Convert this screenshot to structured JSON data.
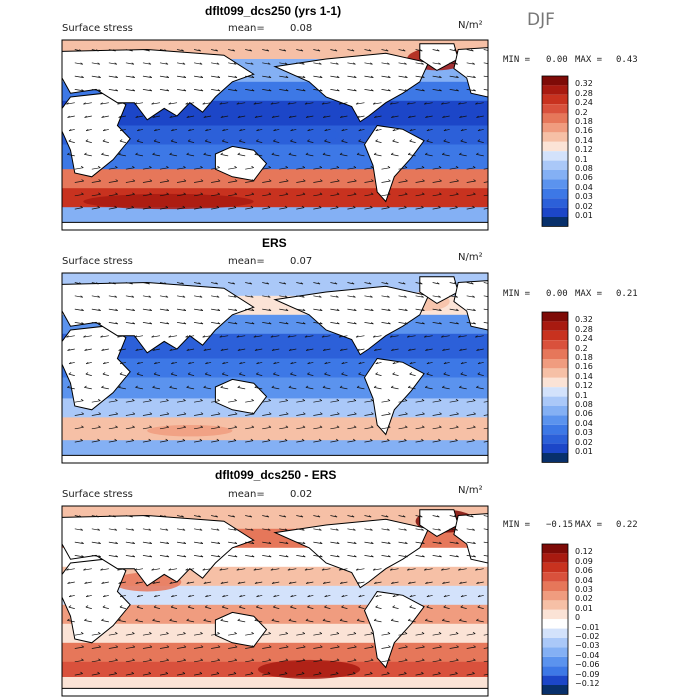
{
  "season": "DJF",
  "colors": {
    "ocean_pos": [
      "#08306b",
      "#1c46c8",
      "#2c60d9",
      "#3d78e6",
      "#5b93ee",
      "#84b0f4",
      "#aac8f8",
      "#d3e2fb",
      "#fbe3d6",
      "#f6c0a6",
      "#f09c7f",
      "#e6775a",
      "#d9513c",
      "#c8321f",
      "#a81a10",
      "#7e0b07"
    ],
    "ocean_diff": [
      "#08306b",
      "#1c46c8",
      "#3d78e6",
      "#5b93ee",
      "#84b0f4",
      "#aac8f8",
      "#d3e2fb",
      "#ffffff",
      "#fbe3d6",
      "#f6c0a6",
      "#f09c7f",
      "#e6775a",
      "#d9513c",
      "#c8321f",
      "#a81a10",
      "#7e0b07"
    ]
  },
  "panels": [
    {
      "title": "dflt099_dcs250 (yrs 1-1)",
      "field": "Surface stress",
      "mean_label": "mean=",
      "mean_value": "0.08",
      "units": "N/m²",
      "min_label": "MIN =",
      "min_value": "0.00",
      "max_label": "MAX =",
      "max_value": "0.43",
      "colorbar": [
        "0.32",
        "0.28",
        "0.24",
        "0.2",
        "0.18",
        "0.16",
        "0.14",
        "0.12",
        "0.1",
        "0.08",
        "0.06",
        "0.04",
        "0.03",
        "0.02",
        "0.01"
      ]
    },
    {
      "title": "ERS",
      "field": "Surface stress",
      "mean_label": "mean=",
      "mean_value": "0.07",
      "units": "N/m²",
      "min_label": "MIN =",
      "min_value": "0.00",
      "max_label": "MAX =",
      "max_value": "0.21",
      "colorbar": [
        "0.32",
        "0.28",
        "0.24",
        "0.2",
        "0.18",
        "0.16",
        "0.14",
        "0.12",
        "0.1",
        "0.08",
        "0.06",
        "0.04",
        "0.03",
        "0.02",
        "0.01"
      ]
    },
    {
      "title": "dflt099_dcs250 - ERS",
      "field": "Surface stress",
      "mean_label": "mean=",
      "mean_value": "0.02",
      "units": "N/m²",
      "min_label": "MIN =",
      "min_value": "−0.15",
      "max_label": "MAX =",
      "max_value": "0.22",
      "colorbar": [
        "0.12",
        "0.09",
        "0.06",
        "0.04",
        "0.03",
        "0.02",
        "0.01",
        "0",
        "−0.01",
        "−0.02",
        "−0.03",
        "−0.04",
        "−0.06",
        "−0.09",
        "−0.12"
      ]
    }
  ]
}
